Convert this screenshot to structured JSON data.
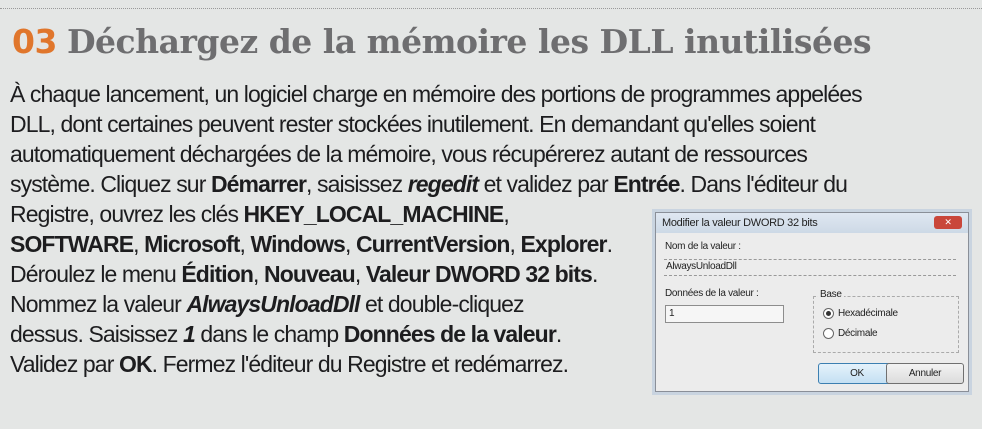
{
  "heading": {
    "number": "03",
    "title": "Déchargez de la mémoire les DLL inutilisées",
    "number_color": "#e0762c"
  },
  "lines": [
    [
      {
        "t": "À chaque lancement, un logiciel charge en mémoire des portions de programmes appelées",
        "s": ""
      }
    ],
    [
      {
        "t": "DLL, dont certaines peuvent rester stockées inutilement. En demandant qu'elles soient",
        "s": ""
      }
    ],
    [
      {
        "t": "automatiquement déchargées de la mémoire, vous récupérerez autant de ressources",
        "s": ""
      }
    ],
    [
      {
        "t": "système. Cliquez sur ",
        "s": ""
      },
      {
        "t": "Démarrer",
        "s": "b"
      },
      {
        "t": ", saisissez ",
        "s": ""
      },
      {
        "t": "regedit",
        "s": "bi"
      },
      {
        "t": " et validez par ",
        "s": ""
      },
      {
        "t": "Entrée",
        "s": "b"
      },
      {
        "t": ". Dans l'éditeur du",
        "s": ""
      }
    ],
    [
      {
        "t": "Registre, ouvrez les clés ",
        "s": ""
      },
      {
        "t": "HKEY_LOCAL_MACHINE",
        "s": "b"
      },
      {
        "t": ",",
        "s": ""
      }
    ],
    [
      {
        "t": "SOFTWARE",
        "s": "b"
      },
      {
        "t": ", ",
        "s": ""
      },
      {
        "t": "Microsoft",
        "s": "b"
      },
      {
        "t": ", ",
        "s": ""
      },
      {
        "t": "Windows",
        "s": "b"
      },
      {
        "t": ", ",
        "s": ""
      },
      {
        "t": "CurrentVersion",
        "s": "b"
      },
      {
        "t": ", ",
        "s": ""
      },
      {
        "t": "Explorer",
        "s": "b"
      },
      {
        "t": ".",
        "s": ""
      }
    ],
    [
      {
        "t": "Déroulez le menu ",
        "s": ""
      },
      {
        "t": "Édition",
        "s": "b"
      },
      {
        "t": ", ",
        "s": ""
      },
      {
        "t": "Nouveau",
        "s": "b"
      },
      {
        "t": ", ",
        "s": ""
      },
      {
        "t": "Valeur DWORD 32 bits",
        "s": "b"
      },
      {
        "t": ".",
        "s": ""
      }
    ],
    [
      {
        "t": "Nommez la valeur ",
        "s": ""
      },
      {
        "t": "AlwaysUnloadDll",
        "s": "bi"
      },
      {
        "t": " et double-cliquez",
        "s": ""
      }
    ],
    [
      {
        "t": "dessus. Saisissez ",
        "s": ""
      },
      {
        "t": "1",
        "s": "bi"
      },
      {
        "t": " dans le champ ",
        "s": ""
      },
      {
        "t": "Données de la valeur",
        "s": "b"
      },
      {
        "t": ".",
        "s": ""
      }
    ],
    [
      {
        "t": "Validez par ",
        "s": ""
      },
      {
        "t": "OK",
        "s": "b"
      },
      {
        "t": ". Fermez l'éditeur du Registre et redémarrez.",
        "s": ""
      }
    ]
  ],
  "dialog": {
    "title": "Modifier la valeur DWORD 32 bits",
    "close_icon": "close-icon",
    "name_label": "Nom de la valeur :",
    "name_value": "AlwaysUnloadDll",
    "data_label": "Données de la valeur :",
    "data_value": "1",
    "base_label": "Base",
    "radio_hex": "Hexadécimale",
    "radio_dec": "Décimale",
    "selected_base": "Hexadécimale",
    "ok": "OK",
    "cancel": "Annuler"
  }
}
